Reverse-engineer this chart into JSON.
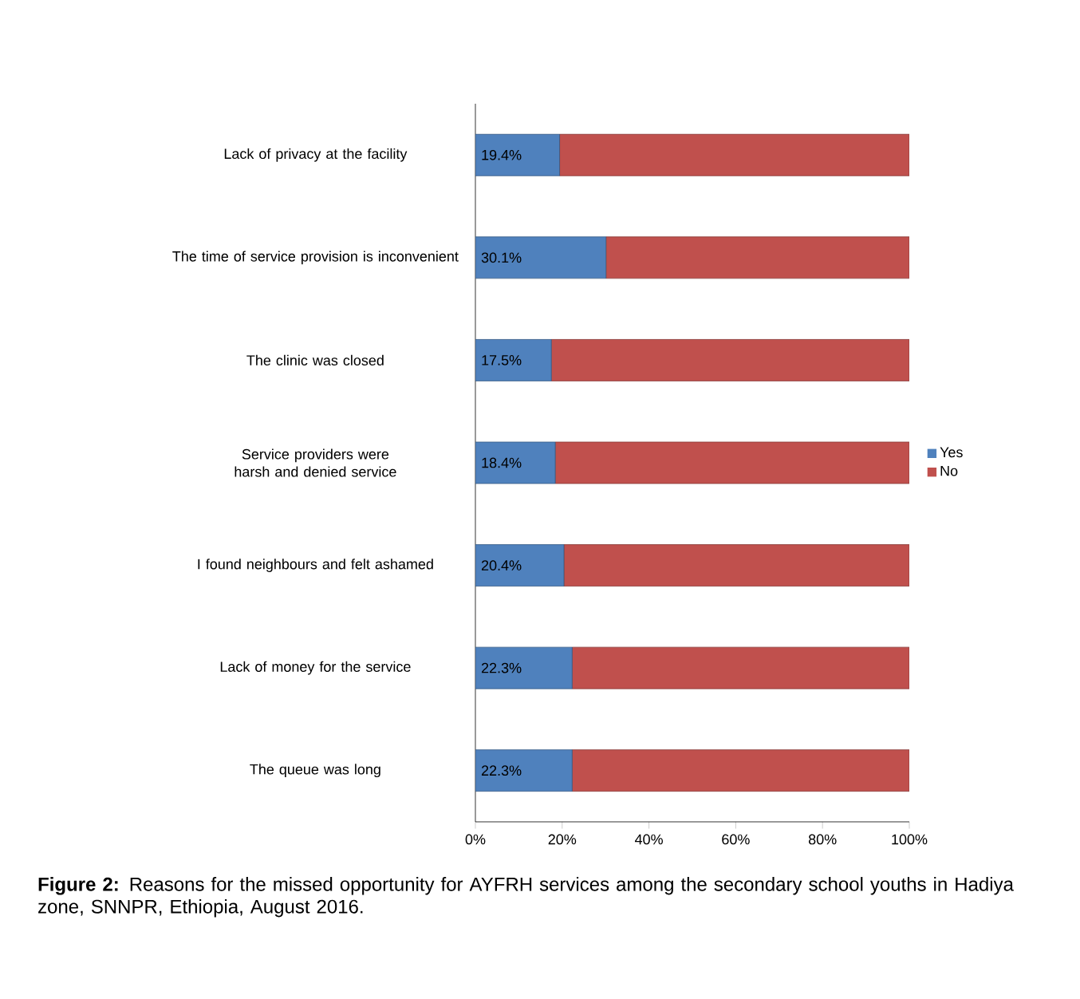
{
  "chart_data": {
    "type": "bar",
    "orientation": "horizontal",
    "stacked": true,
    "categories": [
      "Lack of privacy at the facility",
      "The time of service provision is inconvenient",
      "The clinic was closed",
      "Service providers were harsh and denied service",
      "I found neighbours and felt ashamed",
      "Lack of money for the service",
      "The queue was long"
    ],
    "series": [
      {
        "name": "Yes",
        "color": "#4f81bd",
        "values": [
          19.4,
          30.1,
          17.5,
          18.4,
          20.4,
          22.3,
          22.3
        ],
        "value_labels": [
          "19.4%",
          "30.1%",
          "17.5%",
          "18.4%",
          "20.4%",
          "22.3%",
          "22.3%"
        ]
      },
      {
        "name": "No",
        "color": "#c0504d",
        "values": [
          80.6,
          69.9,
          82.5,
          81.6,
          79.6,
          77.7,
          77.7
        ]
      }
    ],
    "xlim": [
      0,
      100
    ],
    "xticks": [
      {
        "value": 0,
        "label": "0%"
      },
      {
        "value": 20,
        "label": "20%"
      },
      {
        "value": 40,
        "label": "40%"
      },
      {
        "value": 60,
        "label": "60%"
      },
      {
        "value": 80,
        "label": "80%"
      },
      {
        "value": 100,
        "label": "100%"
      }
    ],
    "legend": "right",
    "grid": false,
    "annotations": [
      "**Figure 2:** Reasons for the missed opportunity for AYFRH services among the secondary school youths in Hadiya zone, SNNPR, Ethiopia, August 2016."
    ]
  }
}
